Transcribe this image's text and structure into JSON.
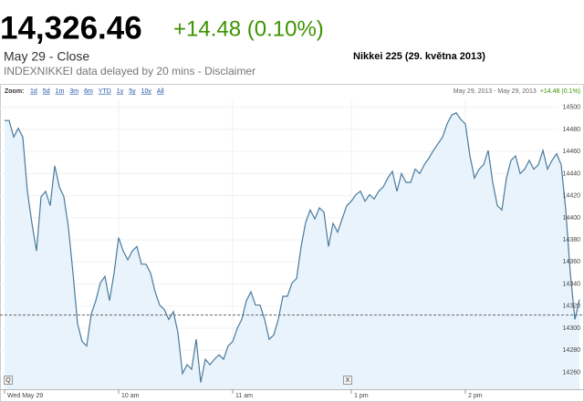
{
  "header": {
    "price": "14,326.46",
    "change": "+14.48 (0.10%)",
    "close_label": "May 29 - Close",
    "source_note": "INDEXNIKKEI data delayed by 20 mins - Disclaimer",
    "caption": "Nikkei 225 (29. května 2013)"
  },
  "toolbar": {
    "zoom_label": "Zoom:",
    "zoom_options": [
      "1d",
      "5d",
      "1m",
      "3m",
      "6m",
      "YTD",
      "1y",
      "5y",
      "10y",
      "All"
    ],
    "date_range": "May 29, 2013 - May 29, 2013",
    "range_change": "+14.48 (0.1%)"
  },
  "scrollbar": {
    "left_handle": "Q",
    "right_handle": "X"
  },
  "chart_data": {
    "type": "line",
    "categories": [
      "Wed May 29",
      null,
      null,
      null,
      null,
      null,
      null,
      null,
      null,
      null,
      null,
      null,
      null,
      null,
      null,
      null,
      null,
      null,
      null,
      null,
      null,
      null,
      null,
      null,
      null,
      "10 am",
      null,
      null,
      null,
      null,
      null,
      null,
      null,
      null,
      null,
      null,
      null,
      null,
      null,
      null,
      null,
      null,
      null,
      null,
      null,
      null,
      null,
      null,
      null,
      null,
      "11 am",
      null,
      null,
      null,
      null,
      null,
      null,
      null,
      null,
      null,
      null,
      null,
      null,
      null,
      null,
      null,
      null,
      null,
      null,
      null,
      null,
      null,
      null,
      null,
      null,
      null,
      "1 pm",
      null,
      null,
      null,
      null,
      null,
      null,
      null,
      null,
      null,
      null,
      null,
      null,
      null,
      null,
      null,
      null,
      null,
      null,
      null,
      null,
      null,
      null,
      null,
      null,
      "2 pm",
      null,
      null,
      null,
      null,
      null,
      null,
      null,
      null,
      null,
      null,
      null,
      null,
      null,
      null,
      null,
      null,
      null,
      null,
      null,
      null,
      null,
      null,
      null,
      null,
      null
    ],
    "values": [
      14488,
      14488,
      14473,
      14481,
      14473,
      14424,
      14395,
      14370,
      14419,
      14424,
      14411,
      14447,
      14428,
      14419,
      14391,
      14350,
      14304,
      14288,
      14284,
      14313,
      14325,
      14341,
      14347,
      14325,
      14350,
      14382,
      14370,
      14362,
      14370,
      14374,
      14358,
      14358,
      14350,
      14333,
      14321,
      14317,
      14308,
      14315,
      14296,
      14259,
      14267,
      14263,
      14290,
      14251,
      14272,
      14267,
      14272,
      14276,
      14272,
      14284,
      14288,
      14300,
      14308,
      14325,
      14333,
      14321,
      14321,
      14308,
      14290,
      14294,
      14308,
      14329,
      14329,
      14341,
      14345,
      14374,
      14396,
      14407,
      14399,
      14409,
      14405,
      14374,
      14395,
      14387,
      14399,
      14411,
      14415,
      14421,
      14424,
      14415,
      14421,
      14417,
      14424,
      14428,
      14436,
      14442,
      14424,
      14440,
      14432,
      14432,
      14444,
      14440,
      14448,
      14454,
      14461,
      14467,
      14473,
      14485,
      14493,
      14495,
      14489,
      14485,
      14456,
      14436,
      14444,
      14448,
      14461,
      14432,
      14411,
      14407,
      14436,
      14452,
      14456,
      14440,
      14444,
      14452,
      14444,
      14448,
      14461,
      14444,
      14452,
      14458,
      14448,
      14407,
      14350,
      14308,
      14326
    ],
    "color": "#4a7a9c",
    "fill_color": "#e8f3fc",
    "ylim": [
      14244,
      14508
    ],
    "yticks": [
      14260,
      14280,
      14300,
      14320,
      14340,
      14360,
      14380,
      14400,
      14420,
      14440,
      14460,
      14480,
      14500
    ],
    "reference_line": 14312,
    "grid": true
  }
}
